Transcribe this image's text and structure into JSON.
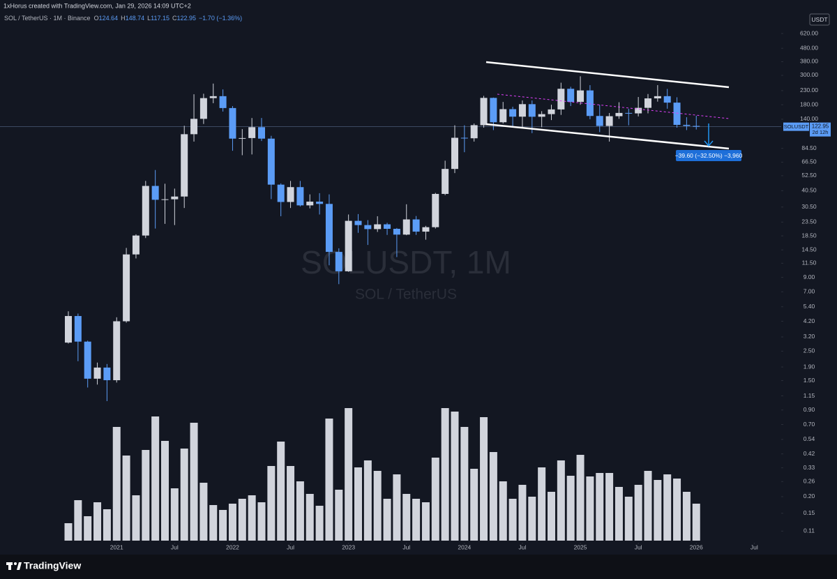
{
  "header": {
    "author": "1xHorus created with TradingView.com, Jan 29, 2026 14:09 UTC+2",
    "symbol": "SOL / TetherUS · 1M · Binance",
    "ohlc_labels": [
      "O",
      "H",
      "L",
      "C"
    ],
    "change": "−1.70 (−1.36%)"
  },
  "chart_data": {
    "type": "candlestick",
    "watermark": "SOLUSDT, 1M",
    "watermark_subtitle": "SOL / TetherUS",
    "currency": "USDT",
    "symbol_label": "SOLUSDT",
    "countdown": "2d 12h",
    "annotation": "−39.60 (−32.50%) −3,960",
    "log_scale": true,
    "grid": false,
    "up_color": "#d1d4dc",
    "down_color": "#5b9cf6",
    "volume_color": "#d1d4dc",
    "x": [
      "2020-08",
      "2020-09",
      "2020-10",
      "2020-11",
      "2020-12",
      "2021-01",
      "2021-02",
      "2021-03",
      "2021-04",
      "2021-05",
      "2021-06",
      "2021-07",
      "2021-08",
      "2021-09",
      "2021-10",
      "2021-11",
      "2021-12",
      "2022-01",
      "2022-02",
      "2022-03",
      "2022-04",
      "2022-05",
      "2022-06",
      "2022-07",
      "2022-08",
      "2022-09",
      "2022-10",
      "2022-11",
      "2022-12",
      "2023-01",
      "2023-02",
      "2023-03",
      "2023-04",
      "2023-05",
      "2023-06",
      "2023-07",
      "2023-08",
      "2023-09",
      "2023-10",
      "2023-11",
      "2023-12",
      "2024-01",
      "2024-02",
      "2024-03",
      "2024-04",
      "2024-05",
      "2024-06",
      "2024-07",
      "2024-08",
      "2024-09",
      "2024-10",
      "2024-11",
      "2024-12",
      "2025-01",
      "2025-02",
      "2025-03",
      "2025-04",
      "2025-05",
      "2025-06",
      "2025-07",
      "2025-08",
      "2025-09",
      "2025-10",
      "2025-11",
      "2025-12",
      "2026-01"
    ],
    "open": [
      2.9,
      4.6,
      2.95,
      1.55,
      1.88,
      1.51,
      4.2,
      13.4,
      18.6,
      44,
      34.6,
      34.9,
      36.6,
      108,
      141,
      202,
      209,
      170,
      100,
      101,
      122,
      100,
      45,
      33.3,
      43.1,
      31.4,
      33.5,
      32.2,
      14,
      10,
      24,
      22.3,
      20.8,
      22.6,
      20.9,
      18.9,
      24.6,
      19.9,
      21.5,
      38.3,
      59.1,
      101.5,
      100.6,
      126.3,
      202.8,
      132.9,
      166.8,
      146.4,
      181.9,
      146.2,
      153,
      166,
      237.5,
      189.3,
      230.9,
      148.2,
      124.6,
      147.6,
      156.2,
      155,
      170.6,
      201.1,
      209,
      186.8,
      127,
      124.64
    ],
    "high": [
      4.99,
      4.8,
      3.0,
      2.05,
      2.0,
      4.5,
      15,
      19,
      48,
      58,
      45.7,
      42,
      125,
      216,
      218,
      260,
      235,
      176,
      118,
      143,
      143,
      105,
      46,
      48,
      48,
      38,
      38.8,
      38,
      14.9,
      26.8,
      27,
      24.3,
      26,
      23.2,
      21.2,
      32,
      26.1,
      22,
      39,
      68.2,
      126,
      126,
      130,
      210,
      204,
      189,
      174,
      194,
      194,
      161,
      180,
      264,
      246,
      295,
      253,
      180,
      156,
      188,
      168,
      206,
      217,
      253,
      237,
      205,
      145,
      148.74
    ],
    "low": [
      2.85,
      2.1,
      1.33,
      1.4,
      1.05,
      1.45,
      4.1,
      12.5,
      17.8,
      21,
      22.8,
      22.3,
      30,
      95,
      129,
      185,
      160,
      81,
      75,
      76,
      96,
      35,
      26,
      30,
      30.8,
      29.8,
      26.8,
      11.1,
      8,
      9.9,
      19.5,
      15.8,
      19.8,
      18.8,
      12.8,
      18.7,
      18.8,
      17.3,
      21,
      37.5,
      55,
      79,
      95,
      121,
      116,
      130,
      122,
      121,
      110,
      122,
      138,
      151,
      176,
      180,
      140,
      112,
      95,
      141,
      126,
      147,
      155,
      190,
      168,
      121,
      116,
      117.15
    ],
    "close": [
      4.6,
      2.95,
      1.55,
      1.88,
      1.51,
      4.2,
      13.4,
      18.6,
      44,
      34.6,
      34.9,
      36.6,
      108,
      141,
      202,
      209,
      170,
      100,
      101,
      122,
      100,
      45,
      33.3,
      43.1,
      31.4,
      33.5,
      32.2,
      14,
      10,
      24,
      22.3,
      20.8,
      22.6,
      20.9,
      18.9,
      24.6,
      19.9,
      21.5,
      38.3,
      59.1,
      101.5,
      100.6,
      126.3,
      202.8,
      132.9,
      166.8,
      146.4,
      181.9,
      146.2,
      153,
      166,
      237.5,
      189.3,
      230.9,
      148.2,
      124.6,
      147.6,
      156.2,
      155,
      170.6,
      201.1,
      209,
      186.8,
      127,
      124.64,
      122.95
    ],
    "volume": [
      25,
      58,
      35,
      55,
      45,
      163,
      122,
      65,
      130,
      178,
      143,
      75,
      132,
      169,
      83,
      51,
      44,
      53,
      60,
      65,
      55,
      107,
      142,
      107,
      85,
      67,
      50,
      175,
      73,
      190,
      105,
      115,
      100,
      60,
      95,
      67,
      60,
      55,
      119,
      190,
      185,
      163,
      103,
      177,
      127,
      85,
      60,
      80,
      63,
      105,
      70,
      115,
      93,
      123,
      92,
      97,
      97,
      77,
      63,
      80,
      100,
      87,
      95,
      89,
      70,
      53
    ],
    "ylim": [
      0.091,
      925
    ],
    "yticks": [
      {
        "value": 620,
        "label": "620.00"
      },
      {
        "value": 480,
        "label": "480.00"
      },
      {
        "value": 380,
        "label": "380.00"
      },
      {
        "value": 300,
        "label": "300.00"
      },
      {
        "value": 230,
        "label": "230.00"
      },
      {
        "value": 180,
        "label": "180.00"
      },
      {
        "value": 140,
        "label": "140.00"
      },
      {
        "value": 84.5,
        "label": "84.50"
      },
      {
        "value": 66.5,
        "label": "66.50"
      },
      {
        "value": 52.5,
        "label": "52.50"
      },
      {
        "value": 40.5,
        "label": "40.50"
      },
      {
        "value": 30.5,
        "label": "30.50"
      },
      {
        "value": 23.5,
        "label": "23.50"
      },
      {
        "value": 18.5,
        "label": "18.50"
      },
      {
        "value": 14.5,
        "label": "14.50"
      },
      {
        "value": 11.5,
        "label": "11.50"
      },
      {
        "value": 9,
        "label": "9.00"
      },
      {
        "value": 7,
        "label": "7.00"
      },
      {
        "value": 5.4,
        "label": "5.40"
      },
      {
        "value": 4.2,
        "label": "4.20"
      },
      {
        "value": 3.2,
        "label": "3.20"
      },
      {
        "value": 2.5,
        "label": "2.50"
      },
      {
        "value": 1.9,
        "label": "1.90"
      },
      {
        "value": 1.5,
        "label": "1.50"
      },
      {
        "value": 1.15,
        "label": "1.15"
      },
      {
        "value": 0.9,
        "label": "0.90"
      },
      {
        "value": 0.7,
        "label": "0.70"
      },
      {
        "value": 0.54,
        "label": "0.54"
      },
      {
        "value": 0.42,
        "label": "0.42"
      },
      {
        "value": 0.33,
        "label": "0.33"
      },
      {
        "value": 0.26,
        "label": "0.26"
      },
      {
        "value": 0.2,
        "label": "0.20"
      },
      {
        "value": 0.15,
        "label": "0.15"
      },
      {
        "value": 0.11,
        "label": "0.11"
      }
    ],
    "xticks": [
      {
        "value": "2021-01",
        "label": "2021"
      },
      {
        "value": "2021-07",
        "label": "Jul"
      },
      {
        "value": "2022-01",
        "label": "2022"
      },
      {
        "value": "2022-07",
        "label": "Jul"
      },
      {
        "value": "2023-01",
        "label": "2023"
      },
      {
        "value": "2023-07",
        "label": "Jul"
      },
      {
        "value": "2024-01",
        "label": "2024"
      },
      {
        "value": "2024-07",
        "label": "Jul"
      },
      {
        "value": "2025-01",
        "label": "2025"
      },
      {
        "value": "2025-07",
        "label": "Jul"
      },
      {
        "value": "2026-01",
        "label": "2026"
      },
      {
        "value": "2026-07",
        "label": "Jul"
      }
    ]
  },
  "footer": {
    "brand": "TradingView"
  }
}
